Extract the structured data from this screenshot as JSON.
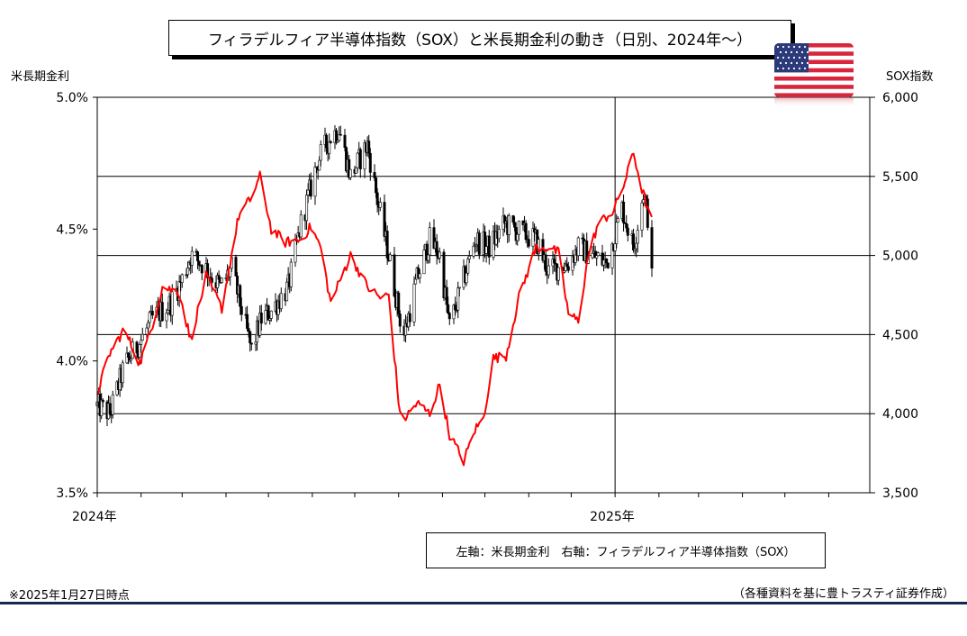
{
  "title": "フィラデルフィア半導体指数（SOX）と米長期金利の動き（日別、2024年～）",
  "left_axis_title": "米長期金利",
  "right_axis_title": "SOX指数",
  "legend_text": "左軸：米長期金利　右軸：フィラデルフィア半導体指数（SOX）",
  "footnote": "※2025年1月27日時点",
  "source": "（各種資料を基に豊トラスティ証券作成）",
  "flag_icon": "us-flag-icon",
  "colors": {
    "yield_line": "#ff0000",
    "sox_candles": "#000000",
    "bottom_rule": "#14294f"
  },
  "chart_data": {
    "type": "line",
    "x_tick_labels": [
      "2024年",
      "2025年"
    ],
    "x_range": [
      "2024-01-01",
      "2025-06-30"
    ],
    "grid": true,
    "left_axis": {
      "name": "米長期金利",
      "unit": "%",
      "ylim": [
        3.5,
        5.0
      ],
      "ticks": [
        "3.5%",
        "4.0%",
        "4.5%",
        "5.0%"
      ]
    },
    "right_axis": {
      "name": "SOX指数",
      "ylim": [
        3500,
        6000
      ],
      "ticks": [
        "3,500",
        "4,000",
        "4,500",
        "5,000",
        "5,500",
        "6,000"
      ]
    },
    "series": [
      {
        "name": "米長期金利",
        "axis": "left",
        "points": [
          [
            "2024-01-01",
            3.88
          ],
          [
            "2024-01-10",
            4.03
          ],
          [
            "2024-01-20",
            4.12
          ],
          [
            "2024-01-31",
            3.99
          ],
          [
            "2024-02-07",
            4.1
          ],
          [
            "2024-02-16",
            4.28
          ],
          [
            "2024-02-28",
            4.26
          ],
          [
            "2024-03-07",
            4.08
          ],
          [
            "2024-03-18",
            4.32
          ],
          [
            "2024-03-29",
            4.2
          ],
          [
            "2024-04-10",
            4.55
          ],
          [
            "2024-04-19",
            4.62
          ],
          [
            "2024-04-25",
            4.7
          ],
          [
            "2024-05-03",
            4.5
          ],
          [
            "2024-05-13",
            4.45
          ],
          [
            "2024-05-24",
            4.46
          ],
          [
            "2024-05-31",
            4.51
          ],
          [
            "2024-06-07",
            4.43
          ],
          [
            "2024-06-14",
            4.22
          ],
          [
            "2024-06-28",
            4.4
          ],
          [
            "2024-07-10",
            4.28
          ],
          [
            "2024-07-19",
            4.24
          ],
          [
            "2024-07-25",
            4.25
          ],
          [
            "2024-08-02",
            3.79
          ],
          [
            "2024-08-05",
            3.78
          ],
          [
            "2024-08-14",
            3.84
          ],
          [
            "2024-08-23",
            3.8
          ],
          [
            "2024-08-30",
            3.91
          ],
          [
            "2024-09-06",
            3.72
          ],
          [
            "2024-09-16",
            3.62
          ],
          [
            "2024-09-24",
            3.74
          ],
          [
            "2024-09-30",
            3.78
          ],
          [
            "2024-10-07",
            4.01
          ],
          [
            "2024-10-16",
            4.02
          ],
          [
            "2024-10-25",
            4.24
          ],
          [
            "2024-11-06",
            4.43
          ],
          [
            "2024-11-15",
            4.43
          ],
          [
            "2024-11-22",
            4.41
          ],
          [
            "2024-11-29",
            4.18
          ],
          [
            "2024-12-06",
            4.15
          ],
          [
            "2024-12-13",
            4.4
          ],
          [
            "2024-12-20",
            4.52
          ],
          [
            "2024-12-31",
            4.57
          ],
          [
            "2025-01-08",
            4.68
          ],
          [
            "2025-01-14",
            4.79
          ],
          [
            "2025-01-20",
            4.65
          ],
          [
            "2025-01-27",
            4.53
          ]
        ]
      },
      {
        "name": "SOX指数",
        "axis": "right",
        "style": "candles",
        "points": [
          [
            "2024-01-01",
            4050
          ],
          [
            "2024-01-10",
            4000
          ],
          [
            "2024-01-20",
            4300
          ],
          [
            "2024-01-31",
            4450
          ],
          [
            "2024-02-09",
            4600
          ],
          [
            "2024-02-22",
            4700
          ],
          [
            "2024-03-01",
            4850
          ],
          [
            "2024-03-07",
            5000
          ],
          [
            "2024-03-15",
            4950
          ],
          [
            "2024-03-28",
            4800
          ],
          [
            "2024-04-05",
            4920
          ],
          [
            "2024-04-19",
            4400
          ],
          [
            "2024-04-26",
            4600
          ],
          [
            "2024-05-03",
            4650
          ],
          [
            "2024-05-15",
            4800
          ],
          [
            "2024-05-24",
            5200
          ],
          [
            "2024-06-05",
            5600
          ],
          [
            "2024-06-14",
            5750
          ],
          [
            "2024-06-20",
            5800
          ],
          [
            "2024-06-28",
            5500
          ],
          [
            "2024-07-10",
            5700
          ],
          [
            "2024-07-17",
            5350
          ],
          [
            "2024-07-25",
            5000
          ],
          [
            "2024-08-02",
            4600
          ],
          [
            "2024-08-05",
            4500
          ],
          [
            "2024-08-14",
            4850
          ],
          [
            "2024-08-23",
            5100
          ],
          [
            "2024-08-30",
            5000
          ],
          [
            "2024-09-06",
            4550
          ],
          [
            "2024-09-16",
            4850
          ],
          [
            "2024-09-24",
            5100
          ],
          [
            "2024-10-04",
            5050
          ],
          [
            "2024-10-15",
            5200
          ],
          [
            "2024-10-25",
            5150
          ],
          [
            "2024-11-06",
            5100
          ],
          [
            "2024-11-15",
            4900
          ],
          [
            "2024-11-29",
            4950
          ],
          [
            "2024-12-06",
            5050
          ],
          [
            "2024-12-16",
            5000
          ],
          [
            "2024-12-26",
            4950
          ],
          [
            "2025-01-06",
            5300
          ],
          [
            "2025-01-14",
            5050
          ],
          [
            "2025-01-21",
            5400
          ],
          [
            "2025-01-24",
            5250
          ],
          [
            "2025-01-27",
            4850
          ]
        ]
      }
    ]
  }
}
